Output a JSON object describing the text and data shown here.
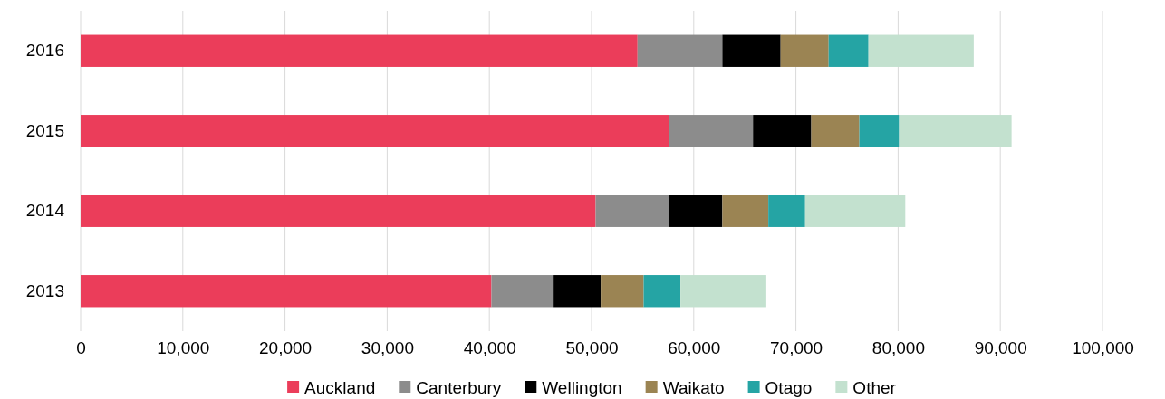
{
  "chart_data": {
    "type": "bar",
    "orientation": "horizontal",
    "stacked": true,
    "categories": [
      "2016",
      "2015",
      "2014",
      "2013"
    ],
    "series": [
      {
        "name": "Auckland",
        "color": "#eb3d5a",
        "values": [
          54500,
          57600,
          50400,
          40200
        ]
      },
      {
        "name": "Canterbury",
        "color": "#8c8c8c",
        "values": [
          8300,
          8200,
          7200,
          6000
        ]
      },
      {
        "name": "Wellington",
        "color": "#000000",
        "values": [
          5700,
          5700,
          5200,
          4700
        ]
      },
      {
        "name": "Waikato",
        "color": "#9b8453",
        "values": [
          4700,
          4700,
          4500,
          4200
        ]
      },
      {
        "name": "Otago",
        "color": "#25a4a4",
        "values": [
          3900,
          3900,
          3600,
          3600
        ]
      },
      {
        "name": "Other",
        "color": "#c3e1cf",
        "values": [
          10300,
          11000,
          9800,
          8400
        ]
      }
    ],
    "xlim": [
      0,
      100000
    ],
    "xticks": [
      {
        "value": 0,
        "label": "0"
      },
      {
        "value": 10000,
        "label": "10,000"
      },
      {
        "value": 20000,
        "label": "20,000"
      },
      {
        "value": 30000,
        "label": "30,000"
      },
      {
        "value": 40000,
        "label": "40,000"
      },
      {
        "value": 50000,
        "label": "50,000"
      },
      {
        "value": 60000,
        "label": "60,000"
      },
      {
        "value": 70000,
        "label": "70,000"
      },
      {
        "value": 80000,
        "label": "80,000"
      },
      {
        "value": 90000,
        "label": "90,000"
      },
      {
        "value": 100000,
        "label": "100,000"
      }
    ],
    "grid": "x",
    "legend": "bottom"
  }
}
